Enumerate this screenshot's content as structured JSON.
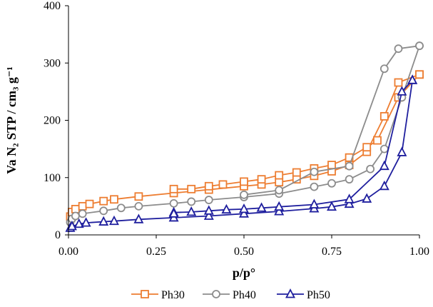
{
  "chart_data": {
    "type": "scatter",
    "title": "",
    "xlabel": "p/p°",
    "ylabel": "Va N₂ STP / cm₃ g⁻¹",
    "xlim": [
      0,
      1
    ],
    "ylim": [
      0,
      400
    ],
    "xticks": [
      {
        "value": 0,
        "label": "0.00"
      },
      {
        "value": 0.25,
        "label": "0.25"
      },
      {
        "value": 0.5,
        "label": "0.50"
      },
      {
        "value": 0.75,
        "label": "0.75"
      },
      {
        "value": 1.0,
        "label": "1.00"
      }
    ],
    "yticks": [
      {
        "value": 0,
        "label": "0"
      },
      {
        "value": 100,
        "label": "100"
      },
      {
        "value": 200,
        "label": "200"
      },
      {
        "value": 300,
        "label": "300"
      },
      {
        "value": 400,
        "label": "400"
      }
    ],
    "grid": false,
    "legend_position": "bottom",
    "series": [
      {
        "name": "Ph30",
        "color": "#ED7D31",
        "marker": "square",
        "adsorption": [
          [
            0.001,
            15
          ],
          [
            0.005,
            32
          ],
          [
            0.01,
            40
          ],
          [
            0.02,
            45
          ],
          [
            0.04,
            50
          ],
          [
            0.06,
            54
          ],
          [
            0.1,
            59
          ],
          [
            0.13,
            62
          ],
          [
            0.2,
            67
          ],
          [
            0.3,
            73
          ],
          [
            0.4,
            79
          ],
          [
            0.5,
            85
          ],
          [
            0.55,
            88
          ],
          [
            0.6,
            92
          ],
          [
            0.65,
            97
          ],
          [
            0.7,
            103
          ],
          [
            0.75,
            111
          ],
          [
            0.8,
            122
          ],
          [
            0.85,
            145
          ],
          [
            0.9,
            207
          ],
          [
            0.94,
            266
          ],
          [
            1.0,
            280
          ]
        ],
        "desorption": [
          [
            1.0,
            280
          ],
          [
            0.94,
            240
          ],
          [
            0.88,
            165
          ],
          [
            0.85,
            153
          ],
          [
            0.8,
            135
          ],
          [
            0.75,
            122
          ],
          [
            0.7,
            116
          ],
          [
            0.65,
            109
          ],
          [
            0.6,
            104
          ],
          [
            0.55,
            97
          ],
          [
            0.5,
            93
          ],
          [
            0.44,
            88
          ],
          [
            0.4,
            85
          ],
          [
            0.35,
            80
          ],
          [
            0.3,
            80
          ]
        ]
      },
      {
        "name": "Ph40",
        "color": "#8C8C8C",
        "marker": "circle",
        "adsorption": [
          [
            0.001,
            12
          ],
          [
            0.005,
            22
          ],
          [
            0.01,
            28
          ],
          [
            0.02,
            33
          ],
          [
            0.04,
            37
          ],
          [
            0.1,
            42
          ],
          [
            0.15,
            47
          ],
          [
            0.2,
            50
          ],
          [
            0.3,
            55
          ],
          [
            0.35,
            58
          ],
          [
            0.4,
            61
          ],
          [
            0.5,
            66
          ],
          [
            0.6,
            72
          ],
          [
            0.7,
            84
          ],
          [
            0.75,
            90
          ],
          [
            0.8,
            97
          ],
          [
            0.86,
            115
          ],
          [
            0.9,
            150
          ],
          [
            0.95,
            240
          ],
          [
            1.0,
            330
          ]
        ],
        "desorption": [
          [
            1.0,
            330
          ],
          [
            0.94,
            325
          ],
          [
            0.9,
            290
          ],
          [
            0.8,
            120
          ],
          [
            0.7,
            110
          ],
          [
            0.6,
            78
          ],
          [
            0.5,
            70
          ]
        ]
      },
      {
        "name": "Ph50",
        "color": "#1F1F9E",
        "marker": "triangle",
        "adsorption": [
          [
            0.001,
            5
          ],
          [
            0.005,
            12
          ],
          [
            0.01,
            15
          ],
          [
            0.03,
            19
          ],
          [
            0.05,
            21
          ],
          [
            0.1,
            23
          ],
          [
            0.13,
            24
          ],
          [
            0.2,
            27
          ],
          [
            0.3,
            30
          ],
          [
            0.4,
            33
          ],
          [
            0.5,
            37
          ],
          [
            0.6,
            41
          ],
          [
            0.7,
            46
          ],
          [
            0.75,
            49
          ],
          [
            0.8,
            54
          ],
          [
            0.85,
            63
          ],
          [
            0.9,
            85
          ],
          [
            0.95,
            144
          ],
          [
            0.98,
            270
          ]
        ],
        "desorption": [
          [
            0.98,
            270
          ],
          [
            0.95,
            250
          ],
          [
            0.9,
            120
          ],
          [
            0.8,
            62
          ],
          [
            0.7,
            53
          ],
          [
            0.6,
            49
          ],
          [
            0.55,
            47
          ],
          [
            0.5,
            45
          ],
          [
            0.45,
            44
          ],
          [
            0.4,
            42
          ],
          [
            0.35,
            40
          ],
          [
            0.3,
            39
          ],
          [
            0.3,
            37
          ]
        ]
      }
    ]
  }
}
